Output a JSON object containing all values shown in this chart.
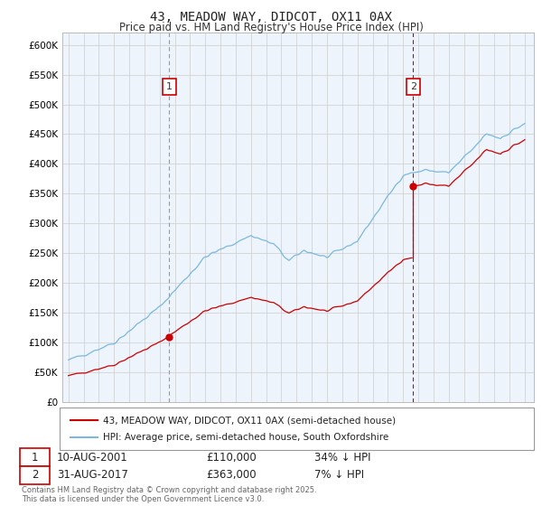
{
  "title": "43, MEADOW WAY, DIDCOT, OX11 0AX",
  "subtitle": "Price paid vs. HM Land Registry's House Price Index (HPI)",
  "legend_line1": "43, MEADOW WAY, DIDCOT, OX11 0AX (semi-detached house)",
  "legend_line2": "HPI: Average price, semi-detached house, South Oxfordshire",
  "annotation1_label": "1",
  "annotation1_date": "10-AUG-2001",
  "annotation1_price": "£110,000",
  "annotation1_hpi": "34% ↓ HPI",
  "annotation2_label": "2",
  "annotation2_date": "31-AUG-2017",
  "annotation2_price": "£363,000",
  "annotation2_hpi": "7% ↓ HPI",
  "footnote": "Contains HM Land Registry data © Crown copyright and database right 2025.\nThis data is licensed under the Open Government Licence v3.0.",
  "hpi_color": "#7ab8e0",
  "sale_color": "#cc0000",
  "vline1_color": "#999999",
  "vline2_color": "#cc0000",
  "background_color": "#ffffff",
  "chart_bg_color": "#eef4fb",
  "grid_color": "#cccccc",
  "ylim": [
    0,
    620000
  ],
  "yticks": [
    0,
    50000,
    100000,
    150000,
    200000,
    250000,
    300000,
    350000,
    400000,
    450000,
    500000,
    550000,
    600000
  ],
  "sale1_year": 2001.62,
  "sale1_price": 110000,
  "sale2_year": 2017.66,
  "sale2_price": 363000,
  "xstart": 1995,
  "xend": 2025
}
